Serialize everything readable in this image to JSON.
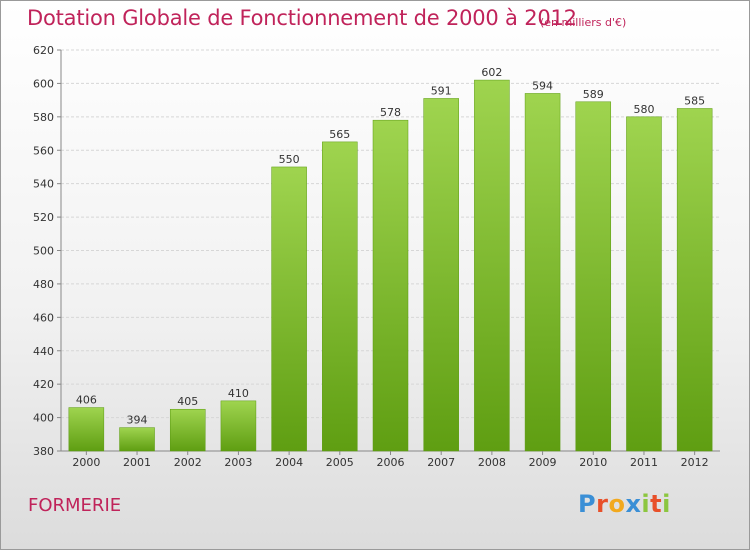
{
  "title": "Dotation Globale de Fonctionnement de 2000 à 2012",
  "subtitle": "(en milliers d'€)",
  "commune": "FORMERIE",
  "logo": {
    "letters": [
      "P",
      "r",
      "o",
      "x",
      "i",
      "t",
      "i"
    ],
    "colors": [
      "#3a8fd6",
      "#e8502a",
      "#f2a91e",
      "#3a8fd6",
      "#8cc63f",
      "#e8502a",
      "#8cc63f"
    ]
  },
  "colors": {
    "bar_top": "#9fd44f",
    "bar_bottom": "#5f9e12",
    "title": "#c0235a"
  },
  "chart_data": {
    "type": "bar",
    "title": "Dotation Globale de Fonctionnement de 2000 à 2012",
    "subtitle": "(en milliers d'€)",
    "categories": [
      "2000",
      "2001",
      "2002",
      "2003",
      "2004",
      "2005",
      "2006",
      "2007",
      "2008",
      "2009",
      "2010",
      "2011",
      "2012"
    ],
    "values": [
      406,
      394,
      405,
      410,
      550,
      565,
      578,
      591,
      602,
      594,
      589,
      580,
      585
    ],
    "ylim": [
      380,
      620
    ],
    "yticks": [
      380,
      400,
      420,
      440,
      460,
      480,
      500,
      520,
      540,
      560,
      580,
      600,
      620
    ],
    "grid": true,
    "legend": "none"
  }
}
